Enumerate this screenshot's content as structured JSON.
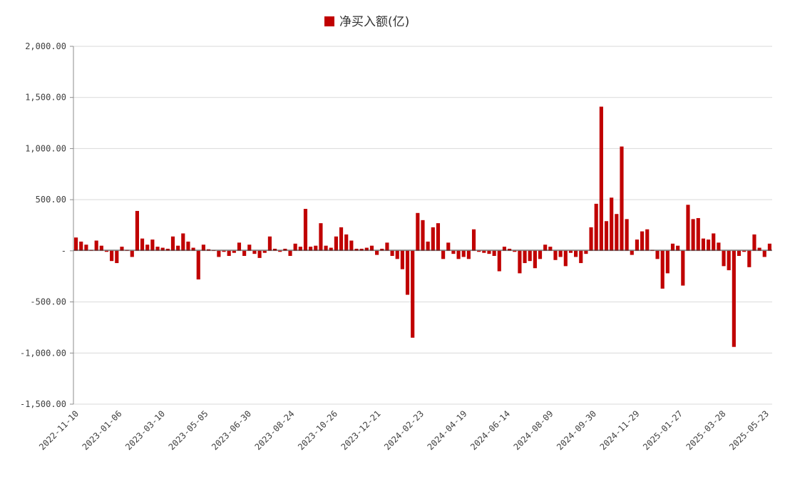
{
  "chart_data": {
    "type": "bar",
    "title": "",
    "xlabel": "",
    "ylabel": "",
    "ylim": [
      -1500,
      2000
    ],
    "yticks": [
      2000,
      1500,
      1000,
      500,
      0,
      -500,
      -1000,
      -1500
    ],
    "ytick_labels": [
      "2,000.00",
      "1,500.00",
      "1,000.00",
      "500.00",
      "-",
      "-500.00",
      "-1,000.00",
      "-1,500.00"
    ],
    "grid": true,
    "legend_position": "top-center",
    "color": "#c00000",
    "xtick_labels": [
      "2022-11-10",
      "2023-01-06",
      "2023-03-10",
      "2023-05-05",
      "2023-06-30",
      "2023-08-24",
      "2023-10-26",
      "2023-12-21",
      "2024-02-23",
      "2024-04-19",
      "2024-06-14",
      "2024-08-09",
      "2024-09-30",
      "2024-11-29",
      "2025-01-27",
      "2025-03-28",
      "2025-05-23"
    ],
    "series": [
      {
        "name": "净买入额(亿)",
        "values": [
          130,
          90,
          60,
          10,
          100,
          50,
          -10,
          -100,
          -120,
          40,
          10,
          -60,
          390,
          120,
          60,
          110,
          40,
          30,
          20,
          140,
          50,
          170,
          90,
          30,
          -280,
          60,
          15,
          5,
          -60,
          -10,
          -50,
          -20,
          80,
          -50,
          60,
          -30,
          -70,
          -20,
          140,
          20,
          -10,
          20,
          -50,
          70,
          40,
          410,
          40,
          50,
          270,
          50,
          30,
          140,
          230,
          160,
          100,
          20,
          20,
          30,
          50,
          -40,
          20,
          80,
          -50,
          -80,
          -180,
          -430,
          -850,
          370,
          300,
          90,
          230,
          270,
          -80,
          80,
          -30,
          -80,
          -60,
          -80,
          210,
          -10,
          -20,
          -30,
          -50,
          -200,
          40,
          20,
          -10,
          -220,
          -120,
          -100,
          -170,
          -80,
          60,
          40,
          -90,
          -60,
          -150,
          -20,
          -60,
          -120,
          -30,
          230,
          460,
          1410,
          290,
          520,
          360,
          1020,
          310,
          -40,
          110,
          190,
          210,
          10,
          -80,
          -370,
          -220,
          70,
          50,
          -340,
          450,
          310,
          320,
          120,
          110,
          170,
          80,
          -150,
          -190,
          -940,
          -50,
          -10,
          -160,
          160,
          30,
          -60,
          70
        ]
      }
    ]
  }
}
